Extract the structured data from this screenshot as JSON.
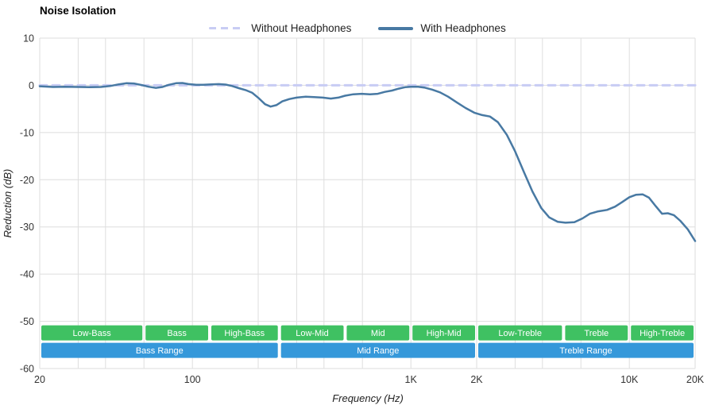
{
  "title": "Noise Isolation",
  "legend": {
    "items": [
      {
        "label": "Without Headphones",
        "color": "#c8ccf4",
        "dash": true
      },
      {
        "label": "With Headphones",
        "color": "#4879a3",
        "dash": false
      }
    ]
  },
  "chart_data": {
    "type": "line",
    "title": "Noise Isolation",
    "xlabel": "Frequency (Hz)",
    "ylabel": "Reduction (dB)",
    "x_scale": "log",
    "xlim": [
      20,
      20000
    ],
    "ylim": [
      -60,
      10
    ],
    "grid": true,
    "grid_color": "#dedede",
    "legend_position": "top-center",
    "x_ticks": [
      {
        "value": 20,
        "label": "20"
      },
      {
        "value": 100,
        "label": "100"
      },
      {
        "value": 1000,
        "label": "1K"
      },
      {
        "value": 2000,
        "label": "2K"
      },
      {
        "value": 10000,
        "label": "10K"
      },
      {
        "value": 20000,
        "label": "20K"
      }
    ],
    "x_gridlines": [
      20,
      30,
      40,
      60,
      100,
      200,
      300,
      400,
      600,
      1000,
      2000,
      3000,
      4000,
      6000,
      10000,
      20000
    ],
    "y_ticks": [
      10,
      0,
      -10,
      -20,
      -30,
      -40,
      -50,
      -60
    ],
    "series": [
      {
        "name": "Without Headphones",
        "color": "#c8ccf4",
        "style": "dashed",
        "width": 3,
        "points": [
          [
            20,
            0
          ],
          [
            20000,
            0
          ]
        ]
      },
      {
        "name": "With Headphones",
        "color": "#4879a3",
        "style": "solid",
        "width": 2.5,
        "points": [
          [
            20,
            -0.2
          ],
          [
            23,
            -0.35
          ],
          [
            26,
            -0.3
          ],
          [
            30,
            -0.35
          ],
          [
            34,
            -0.4
          ],
          [
            38,
            -0.35
          ],
          [
            42,
            -0.15
          ],
          [
            46,
            0.2
          ],
          [
            50,
            0.45
          ],
          [
            54,
            0.4
          ],
          [
            58,
            0.1
          ],
          [
            63,
            -0.3
          ],
          [
            68,
            -0.55
          ],
          [
            73,
            -0.35
          ],
          [
            78,
            0.1
          ],
          [
            84,
            0.45
          ],
          [
            90,
            0.5
          ],
          [
            96,
            0.25
          ],
          [
            104,
            0.1
          ],
          [
            112,
            0.1
          ],
          [
            122,
            0.2
          ],
          [
            132,
            0.25
          ],
          [
            142,
            0.15
          ],
          [
            152,
            -0.15
          ],
          [
            163,
            -0.6
          ],
          [
            175,
            -1.0
          ],
          [
            188,
            -1.6
          ],
          [
            202,
            -2.8
          ],
          [
            215,
            -4.0
          ],
          [
            228,
            -4.5
          ],
          [
            242,
            -4.2
          ],
          [
            258,
            -3.4
          ],
          [
            278,
            -2.9
          ],
          [
            300,
            -2.6
          ],
          [
            330,
            -2.4
          ],
          [
            360,
            -2.5
          ],
          [
            395,
            -2.6
          ],
          [
            430,
            -2.8
          ],
          [
            465,
            -2.6
          ],
          [
            500,
            -2.2
          ],
          [
            545,
            -1.9
          ],
          [
            595,
            -1.8
          ],
          [
            650,
            -1.9
          ],
          [
            705,
            -1.8
          ],
          [
            760,
            -1.4
          ],
          [
            820,
            -1.1
          ],
          [
            880,
            -0.7
          ],
          [
            940,
            -0.4
          ],
          [
            1000,
            -0.3
          ],
          [
            1080,
            -0.3
          ],
          [
            1160,
            -0.5
          ],
          [
            1250,
            -0.9
          ],
          [
            1360,
            -1.5
          ],
          [
            1480,
            -2.4
          ],
          [
            1620,
            -3.6
          ],
          [
            1780,
            -4.8
          ],
          [
            1950,
            -5.8
          ],
          [
            2120,
            -6.3
          ],
          [
            2300,
            -6.6
          ],
          [
            2500,
            -7.8
          ],
          [
            2750,
            -10.5
          ],
          [
            3000,
            -14
          ],
          [
            3300,
            -18.5
          ],
          [
            3600,
            -22.5
          ],
          [
            3950,
            -26
          ],
          [
            4300,
            -28
          ],
          [
            4700,
            -28.9
          ],
          [
            5100,
            -29.1
          ],
          [
            5600,
            -29
          ],
          [
            6100,
            -28.2
          ],
          [
            6600,
            -27.2
          ],
          [
            7200,
            -26.7
          ],
          [
            7900,
            -26.4
          ],
          [
            8600,
            -25.7
          ],
          [
            9300,
            -24.7
          ],
          [
            10000,
            -23.7
          ],
          [
            10700,
            -23.2
          ],
          [
            11500,
            -23.1
          ],
          [
            12300,
            -23.8
          ],
          [
            13200,
            -25.6
          ],
          [
            14100,
            -27.2
          ],
          [
            15000,
            -27.1
          ],
          [
            16000,
            -27.5
          ],
          [
            17100,
            -28.7
          ],
          [
            18500,
            -30.5
          ],
          [
            20000,
            -33
          ]
        ]
      }
    ],
    "frequency_bands": {
      "band_color": "#3fc162",
      "range_color": "#3598da",
      "bands": [
        {
          "label": "Low-Bass",
          "from": 20,
          "to": 60
        },
        {
          "label": "Bass",
          "from": 60,
          "to": 120
        },
        {
          "label": "High-Bass",
          "from": 120,
          "to": 250
        },
        {
          "label": "Low-Mid",
          "from": 250,
          "to": 500
        },
        {
          "label": "Mid",
          "from": 500,
          "to": 1000
        },
        {
          "label": "High-Mid",
          "from": 1000,
          "to": 2000
        },
        {
          "label": "Low-Treble",
          "from": 2000,
          "to": 5000
        },
        {
          "label": "Treble",
          "from": 5000,
          "to": 10000
        },
        {
          "label": "High-Treble",
          "from": 10000,
          "to": 20000
        }
      ],
      "ranges": [
        {
          "label": "Bass Range",
          "from": 20,
          "to": 250
        },
        {
          "label": "Mid Range",
          "from": 250,
          "to": 2000
        },
        {
          "label": "Treble Range",
          "from": 2000,
          "to": 20000
        }
      ]
    }
  }
}
